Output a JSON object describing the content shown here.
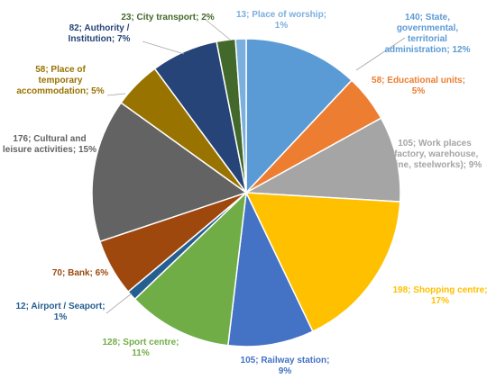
{
  "chart_data": {
    "type": "pie",
    "title": "",
    "slices": [
      {
        "category": "State, governmental, territorial administration",
        "value": 140,
        "percent": "12%",
        "color": "#5b9bd5",
        "label_lines": [
          "140; State,",
          "governmental,",
          "territorial",
          "administration; 12%"
        ]
      },
      {
        "category": "Educational units",
        "value": 58,
        "percent": "5%",
        "color": "#ed7d31",
        "label_lines": [
          "58; Educational units;",
          "5%"
        ]
      },
      {
        "category": "Work places (factory, warehouse, mine, steelworks)",
        "value": 105,
        "percent": "9%",
        "color": "#a5a5a5",
        "label_lines": [
          "105; Work places",
          "(factory, warehouse,",
          "mine, steelworks); 9%"
        ]
      },
      {
        "category": "Shopping centre",
        "value": 198,
        "percent": "17%",
        "color": "#ffc000",
        "label_lines": [
          "198; Shopping centre;",
          "17%"
        ]
      },
      {
        "category": "Railway station",
        "value": 105,
        "percent": "9%",
        "color": "#4472c4",
        "label_lines": [
          "105; Railway station;",
          "9%"
        ]
      },
      {
        "category": "Sport centre",
        "value": 128,
        "percent": "11%",
        "color": "#70ad47",
        "label_lines": [
          "128; Sport centre;",
          "11%"
        ]
      },
      {
        "category": "Airport / Seaport",
        "value": 12,
        "percent": "1%",
        "color": "#255e91",
        "label_lines": [
          "12; Airport / Seaport;",
          "1%"
        ]
      },
      {
        "category": "Bank",
        "value": 70,
        "percent": "6%",
        "color": "#9e480e",
        "label_lines": [
          "70; Bank; 6%"
        ]
      },
      {
        "category": "Cultural and leisure activities",
        "value": 176,
        "percent": "15%",
        "color": "#636363",
        "label_lines": [
          "176; Cultural and",
          "leisure activities; 15%"
        ]
      },
      {
        "category": "Place of temporary accommodation",
        "value": 58,
        "percent": "5%",
        "color": "#997300",
        "label_lines": [
          "58; Place of",
          "temporary",
          "accommodation; 5%"
        ]
      },
      {
        "category": "Authority / Institution",
        "value": 82,
        "percent": "7%",
        "color": "#264478",
        "label_lines": [
          "82; Authority /",
          "Institution; 7%"
        ]
      },
      {
        "category": "City transport",
        "value": 23,
        "percent": "2%",
        "color": "#43682b",
        "label_lines": [
          "23; City transport; 2%"
        ]
      },
      {
        "category": "Place of worship",
        "value": 13,
        "percent": "1%",
        "color": "#7cafdd",
        "label_lines": [
          "13; Place of worship;",
          "1%"
        ]
      }
    ]
  }
}
